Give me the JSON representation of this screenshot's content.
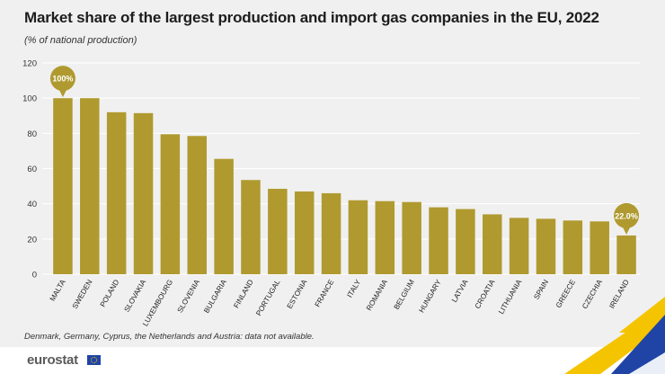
{
  "title": "Market share of the largest production and import gas companies in the EU, 2022",
  "subtitle": "(% of national production)",
  "footnote": "Denmark, Germany, Cyprus, the Netherlands and Austria: data not available.",
  "brand": "eurostat",
  "colors": {
    "bar": "#b09a2f",
    "callout": "#b09a2f",
    "grid": "#ffffff",
    "text": "#1d1d1d",
    "accent_blue": "#1f44a6",
    "accent_yellow": "#f5c400"
  },
  "chart_data": {
    "type": "bar",
    "title": "Market share of the largest production and import gas companies in the EU, 2022",
    "ylabel": "% of national production",
    "xlabel": "",
    "ylim": [
      0,
      120
    ],
    "yticks": [
      0,
      20,
      40,
      60,
      80,
      100,
      120
    ],
    "grid": true,
    "categories": [
      "MALTA",
      "SWEDEN",
      "POLAND",
      "SLOVAKIA",
      "LUXEMBOURG",
      "SLOVENIA",
      "BULGARIA",
      "FINLAND",
      "PORTUGAL",
      "ESTONIA",
      "FRANCE",
      "ITALY",
      "ROMANIA",
      "BELGIUM",
      "HUNGARY",
      "LATVIA",
      "CROATIA",
      "LITHUANIA",
      "SPAIN",
      "GREECE",
      "CZECHIA",
      "IRELAND"
    ],
    "values": [
      100,
      100,
      92,
      91.5,
      79.5,
      78.5,
      65.5,
      53.5,
      48.5,
      47,
      46,
      42,
      41.5,
      41,
      38,
      37,
      34,
      32,
      31.5,
      30.5,
      30,
      22
    ],
    "annotations": [
      {
        "category": "MALTA",
        "label": "100%"
      },
      {
        "category": "IRELAND",
        "label": "22.0%"
      }
    ]
  }
}
